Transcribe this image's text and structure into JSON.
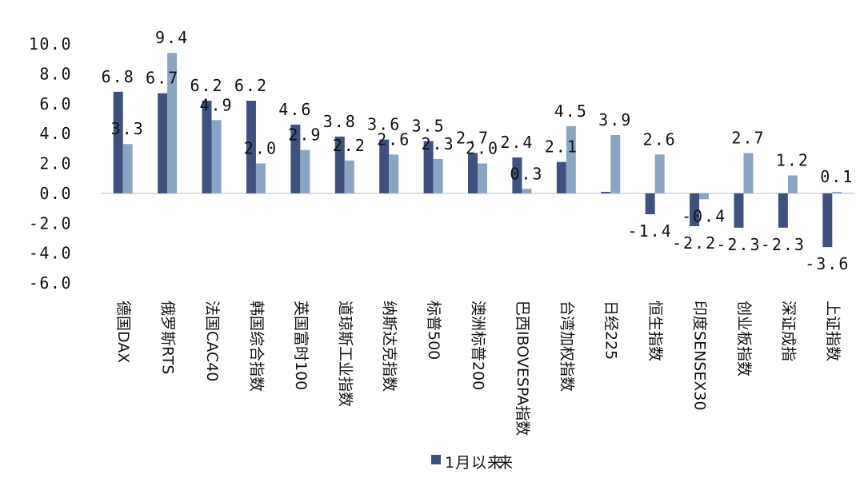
{
  "chart_data": {
    "type": "bar",
    "title": "",
    "xlabel": "",
    "ylabel": "",
    "ylim": [
      -6,
      10
    ],
    "yticks": [
      "10.0",
      "8.0",
      "6.0",
      "4.0",
      "2.0",
      "0.0",
      "-2.0",
      "-4.0",
      "-6.0"
    ],
    "grid": false,
    "legend_position": "bottom",
    "categories": [
      "德国DAX",
      "俄罗斯RTS",
      "法国CAC40",
      "韩国综合指数",
      "英国富时100",
      "道琼斯工业指数",
      "纳斯达克指数",
      "标普500",
      "澳洲标普200",
      "巴西IBOVESPA指数",
      "台湾加权指数",
      "日经225",
      "恒生指数",
      "印度SENSEX30",
      "创业板指数",
      "深证成指",
      "上证指数"
    ],
    "series": [
      {
        "name": "1月以来",
        "color": "#3e5180",
        "values": [
          6.8,
          6.7,
          6.2,
          6.2,
          4.6,
          3.8,
          3.6,
          3.5,
          2.7,
          2.4,
          2.1,
          0.1,
          -1.4,
          -2.2,
          -2.3,
          -2.3,
          -3.6
        ],
        "labels": [
          "6.8",
          "6.7",
          "6.2",
          "6.2",
          "4.6",
          "3.8",
          "3.6",
          "3.5",
          "2.7",
          "2.4",
          "2.1",
          "",
          "-1.4",
          "-2.2",
          "-2.3",
          "-2.3",
          "-3.6"
        ]
      },
      {
        "color": "#8aa5c4",
        "values": [
          3.3,
          9.4,
          4.9,
          2.0,
          2.9,
          2.2,
          2.6,
          2.3,
          2.0,
          0.3,
          4.5,
          3.9,
          2.6,
          -0.4,
          2.7,
          1.2,
          0.1
        ],
        "labels": [
          "3.3",
          "9.4",
          "4.9",
          "2.0",
          "2.9",
          "2.2",
          "2.6",
          "2.3",
          "2.0",
          "0.3",
          "4.5",
          "3.9",
          "2.6",
          "-0.4",
          "2.7",
          "1.2",
          "0.1"
        ]
      }
    ],
    "legend": {
      "label": "1月以来",
      "overlap_glyph": "来"
    }
  }
}
